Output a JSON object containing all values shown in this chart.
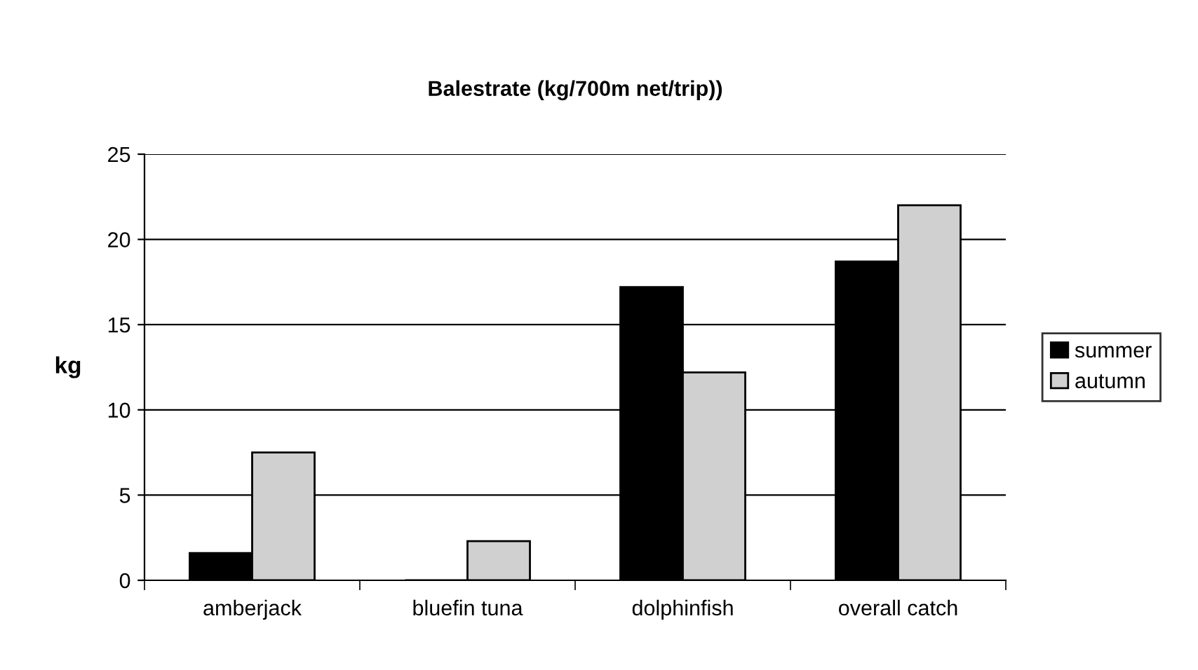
{
  "chart_data": {
    "type": "bar",
    "title": "Balestrate (kg/700m net/trip))",
    "ylabel": "kg",
    "categories": [
      "amberjack",
      "bluefin tuna",
      "dolphinfish",
      "overall catch"
    ],
    "series": [
      {
        "name": "summer",
        "color": "#000000",
        "values": [
          1.6,
          0,
          17.2,
          18.7
        ]
      },
      {
        "name": "autumn",
        "color": "#d0d0d0",
        "values": [
          7.5,
          2.3,
          12.2,
          22.0
        ]
      }
    ],
    "ylim": [
      0,
      25
    ],
    "yticks": [
      0,
      5,
      10,
      15,
      20,
      25
    ],
    "grid": "y",
    "legend": "right"
  }
}
